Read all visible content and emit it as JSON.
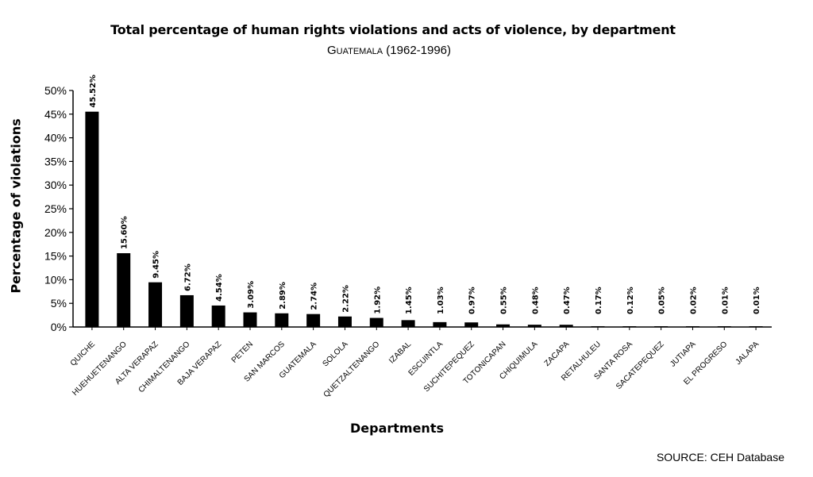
{
  "chart_data": {
    "type": "bar",
    "title": "Total percentage of human rights violations and acts of violence, by department",
    "subtitle_region": "Guatemala",
    "subtitle_years": "(1962-1996)",
    "xlabel": "Departments",
    "ylabel": "Percentage of violations",
    "ylim": [
      0,
      50
    ],
    "yticks": [
      0,
      5,
      10,
      15,
      20,
      25,
      30,
      35,
      40,
      45,
      50
    ],
    "ytick_labels": [
      "0%",
      "5%",
      "10%",
      "15%",
      "20%",
      "25%",
      "30%",
      "35%",
      "40%",
      "45%",
      "50%"
    ],
    "grid": false,
    "categories": [
      "QUICHE",
      "HUEHUETENANGO",
      "ALTA VERAPAZ",
      "CHIMALTENANGO",
      "BAJA VERAPAZ",
      "PETEN",
      "SAN MARCOS",
      "GUATEMALA",
      "SOLOLA",
      "QUETZALTENANGO",
      "IZABAL",
      "ESCUINTLA",
      "SUCHITEPEQUEZ",
      "TOTONICAPAN",
      "CHIQUIMULA",
      "ZACAPA",
      "RETALHULEU",
      "SANTA ROSA",
      "SACATEPEQUEZ",
      "JUTIAPA",
      "EL PROGRESO",
      "JALAPA"
    ],
    "values": [
      45.52,
      15.6,
      9.45,
      6.72,
      4.54,
      3.09,
      2.89,
      2.74,
      2.22,
      1.92,
      1.45,
      1.03,
      0.97,
      0.55,
      0.48,
      0.47,
      0.17,
      0.12,
      0.05,
      0.02,
      0.01,
      0.01
    ],
    "value_labels": [
      "45.52%",
      "15.60%",
      "9.45%",
      "6.72%",
      "4.54%",
      "3.09%",
      "2.89%",
      "2.74%",
      "2.22%",
      "1.92%",
      "1.45%",
      "1.03%",
      "0.97%",
      "0.55%",
      "0.48%",
      "0.47%",
      "0.17%",
      "0.12%",
      "0.05%",
      "0.02%",
      "0.01%",
      "0.01%"
    ],
    "bar_color": "#000000"
  },
  "source": "SOURCE: CEH Database"
}
